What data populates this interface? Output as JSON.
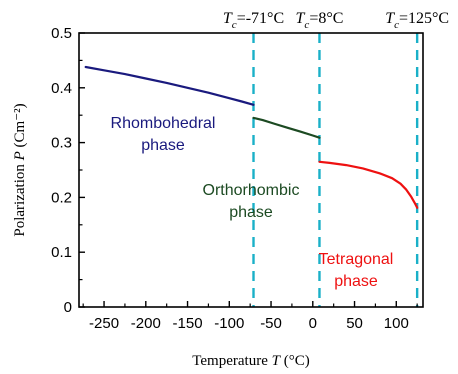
{
  "chart_data": {
    "type": "line",
    "xlabel": "Temperature T (°C)",
    "ylabel": "Polarization P (Cm⁻²)",
    "xlim": [
      -280,
      132
    ],
    "ylim": [
      0,
      0.5
    ],
    "x_ticks": [
      -250,
      -200,
      -150,
      -100,
      -50,
      0,
      50,
      100
    ],
    "y_ticks": [
      0,
      0.1,
      0.2,
      0.3,
      0.4,
      0.5
    ],
    "y_tick_labels": [
      "0",
      "0.1",
      "0.2",
      "0.3",
      "0.4",
      "0.5"
    ],
    "grid": false,
    "transitions": [
      {
        "var": "T",
        "sub": "c",
        "text": "=-71°C",
        "x": -71
      },
      {
        "var": "T",
        "sub": "c",
        "text": "=8°C",
        "x": 8
      },
      {
        "var": "T",
        "sub": "c",
        "text": "=125°C",
        "x": 125
      }
    ],
    "series": [
      {
        "label_lines": [
          "Rhombohedral",
          "phase"
        ],
        "color": "#1a1a7e",
        "x": [
          -272,
          -250,
          -225,
          -200,
          -175,
          -150,
          -125,
          -100,
          -85,
          -71
        ],
        "y": [
          0.438,
          0.432,
          0.425,
          0.417,
          0.409,
          0.4,
          0.391,
          0.381,
          0.375,
          0.369
        ]
      },
      {
        "label_lines": [
          "Orthorhombic",
          "phase"
        ],
        "color": "#1c4a22",
        "x": [
          -71,
          -60,
          -45,
          -30,
          -15,
          0,
          8
        ],
        "y": [
          0.345,
          0.341,
          0.334,
          0.327,
          0.32,
          0.313,
          0.309
        ]
      },
      {
        "label_lines": [
          "Tetragonal",
          "phase"
        ],
        "color": "#ee1111",
        "x": [
          8,
          20,
          40,
          60,
          80,
          95,
          105,
          112,
          118,
          122,
          125
        ],
        "y": [
          0.265,
          0.263,
          0.259,
          0.253,
          0.244,
          0.235,
          0.225,
          0.214,
          0.201,
          0.19,
          0.181
        ]
      }
    ],
    "transition_line_color": "#1ab0c8"
  }
}
